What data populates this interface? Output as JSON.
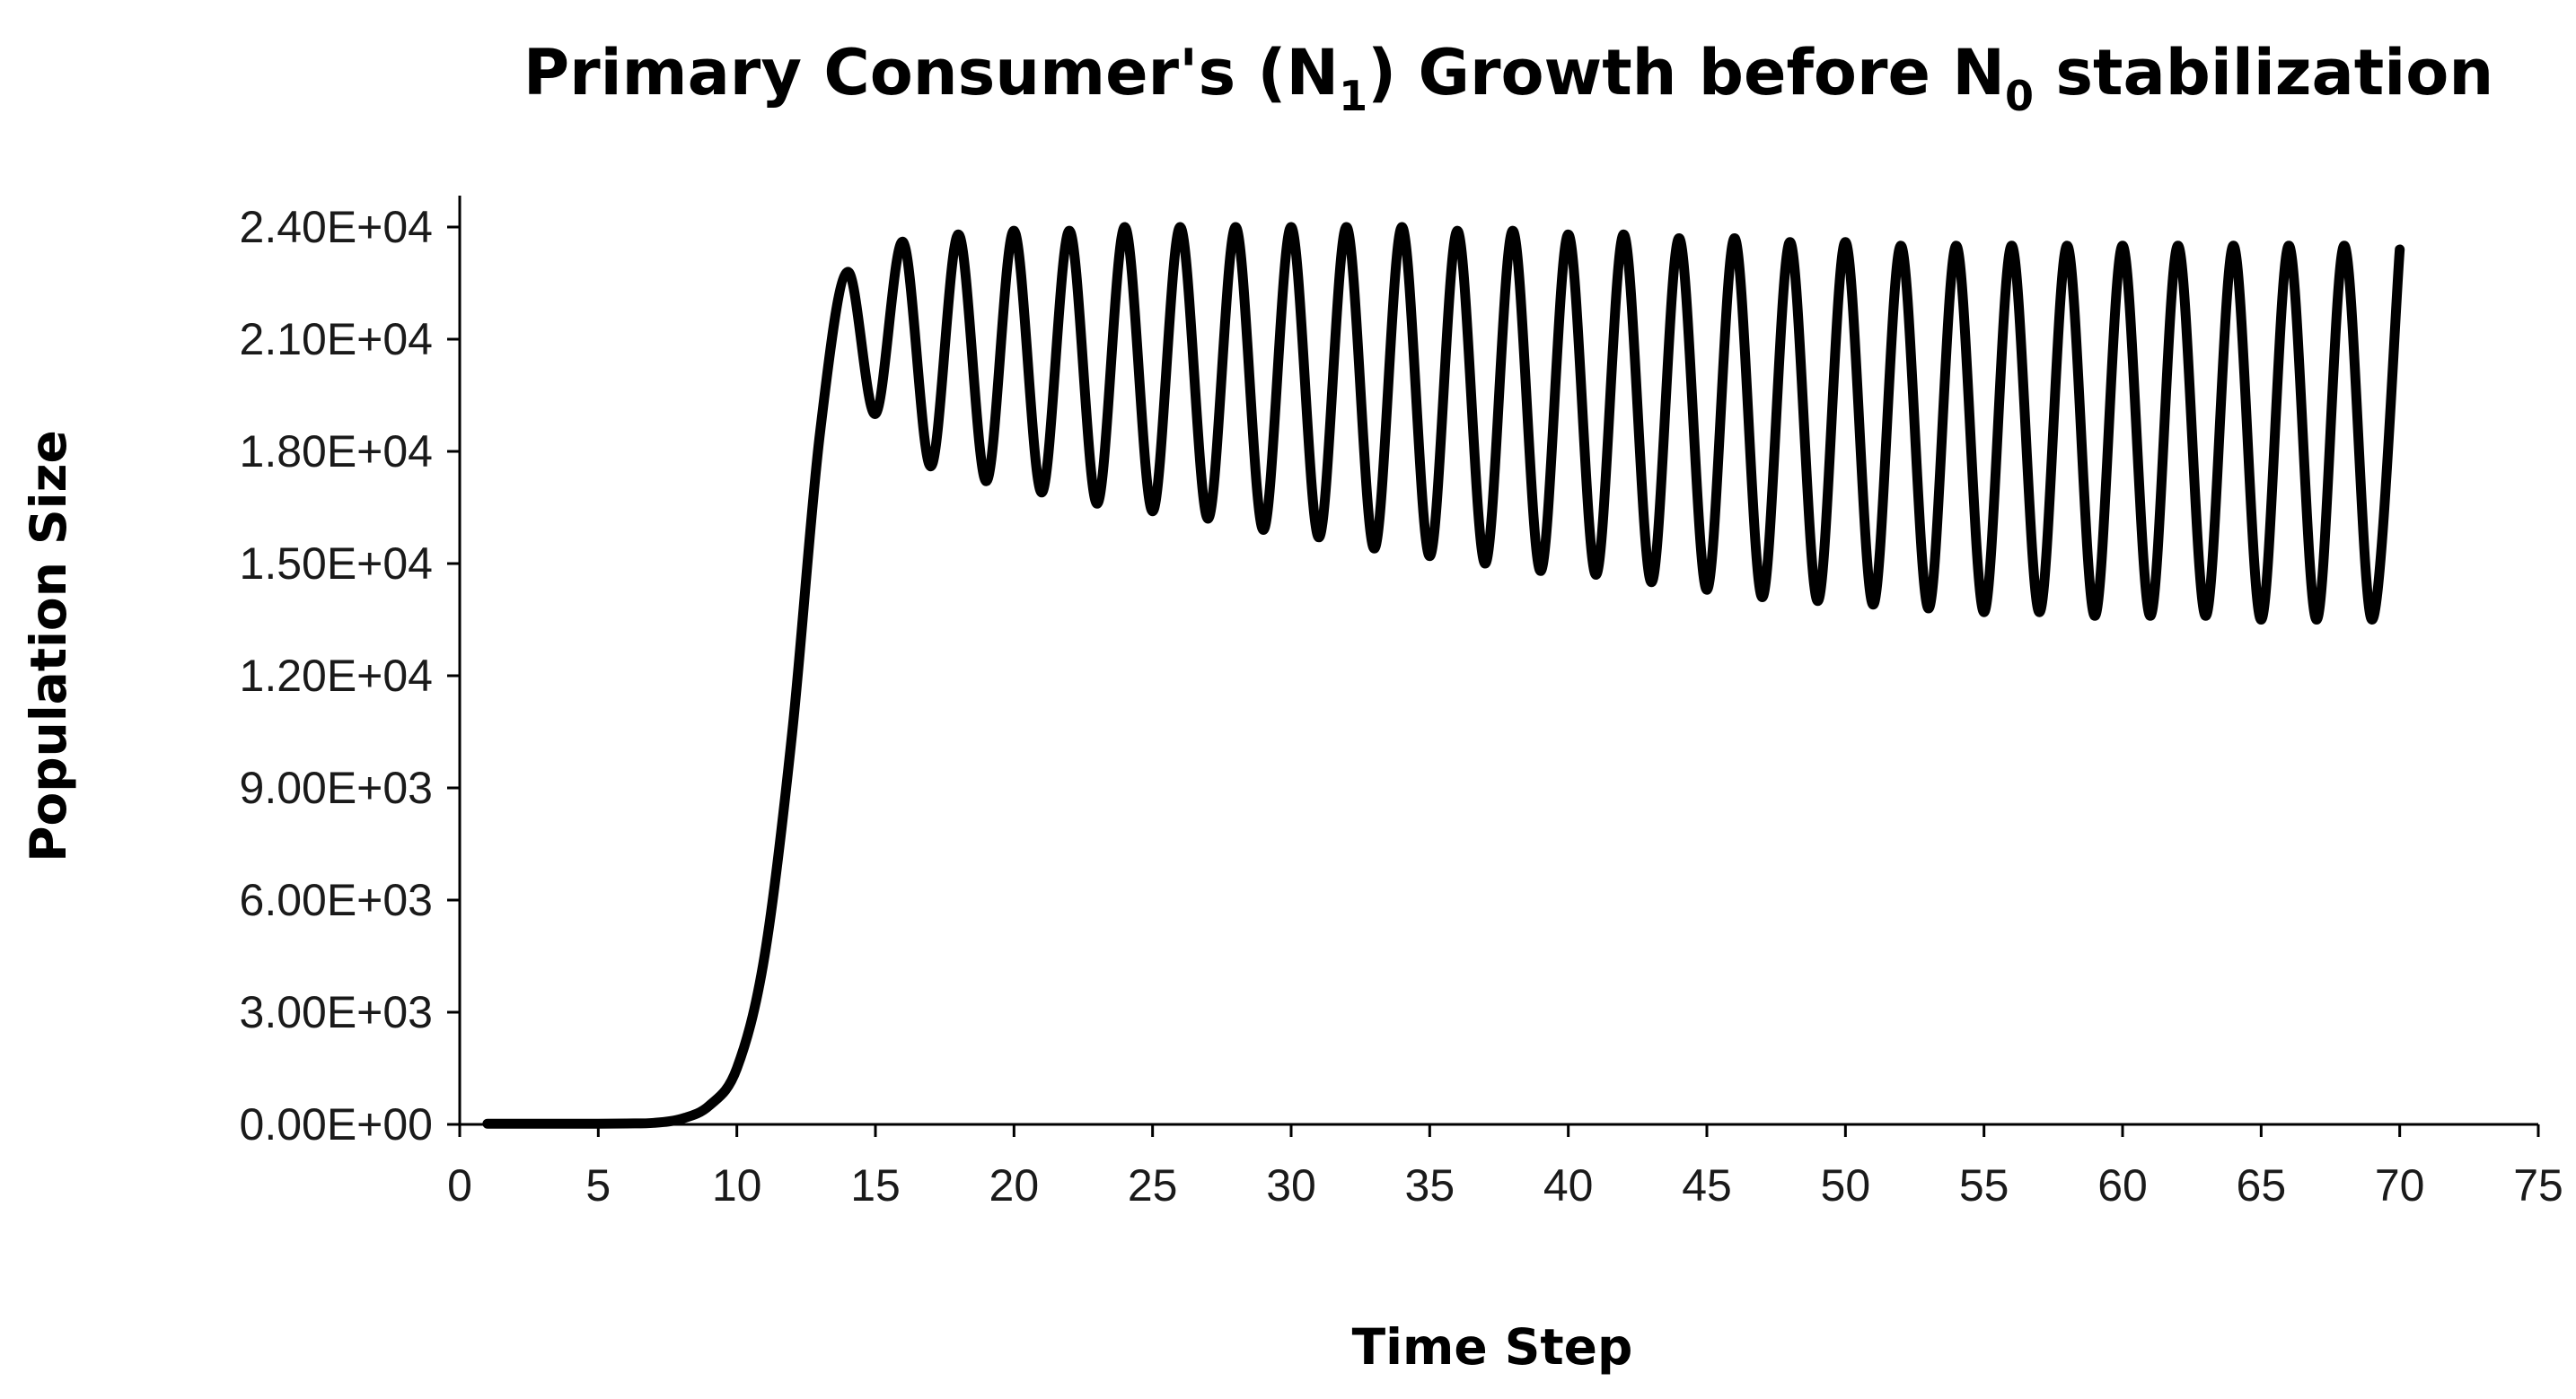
{
  "chart_data": {
    "type": "line",
    "title": {
      "main": "Primary Consumer's (N",
      "sub1": "1",
      "mid": ") Growth before N",
      "sub2": "0",
      "end": " stabilization"
    },
    "xlabel": "Time Step",
    "ylabel": "Population Size",
    "xlim": [
      0,
      75
    ],
    "ylim": [
      0,
      24000
    ],
    "x_ticks": [
      0,
      5,
      10,
      15,
      20,
      25,
      30,
      35,
      40,
      45,
      50,
      55,
      60,
      65,
      70,
      75
    ],
    "x_tick_labels": [
      "0",
      "5",
      "10",
      "15",
      "20",
      "25",
      "30",
      "35",
      "40",
      "45",
      "50",
      "55",
      "60",
      "65",
      "70",
      "75"
    ],
    "y_ticks": [
      0,
      3000,
      6000,
      9000,
      12000,
      15000,
      18000,
      21000,
      24000
    ],
    "y_tick_labels": [
      "0.00E+00",
      "3.00E+03",
      "6.00E+03",
      "9.00E+03",
      "1.20E+04",
      "1.50E+04",
      "1.80E+04",
      "2.10E+04",
      "2.40E+04"
    ],
    "grid": false,
    "series": [
      {
        "name": "N1",
        "color": "#000000",
        "x": [
          1,
          2,
          3,
          4,
          5,
          6,
          7,
          8,
          9,
          10,
          11,
          12,
          13,
          14,
          15,
          16,
          17,
          18,
          19,
          20,
          21,
          22,
          23,
          24,
          25,
          26,
          27,
          28,
          29,
          30,
          31,
          32,
          33,
          34,
          35,
          36,
          37,
          38,
          39,
          40,
          41,
          42,
          43,
          44,
          45,
          46,
          47,
          48,
          49,
          50,
          51,
          52,
          53,
          54,
          55,
          56,
          57,
          58,
          59,
          60,
          61,
          62,
          63,
          64,
          65,
          66,
          67,
          68,
          69,
          70
        ],
        "values": [
          20,
          20,
          20,
          20,
          20,
          25,
          40,
          150,
          500,
          1500,
          4500,
          10500,
          18500,
          22800,
          19000,
          23600,
          17600,
          23800,
          17200,
          23900,
          16900,
          23900,
          16600,
          24000,
          16400,
          24000,
          16200,
          24000,
          15900,
          24000,
          15700,
          24000,
          15400,
          24000,
          15200,
          23900,
          15000,
          23900,
          14800,
          23800,
          14700,
          23800,
          14500,
          23700,
          14300,
          23700,
          14100,
          23600,
          14000,
          23600,
          13900,
          23500,
          13800,
          23500,
          13700,
          23500,
          13700,
          23500,
          13600,
          23500,
          13600,
          23500,
          13600,
          23500,
          13500,
          23500,
          13500,
          23500,
          13500,
          23400
        ]
      }
    ]
  }
}
